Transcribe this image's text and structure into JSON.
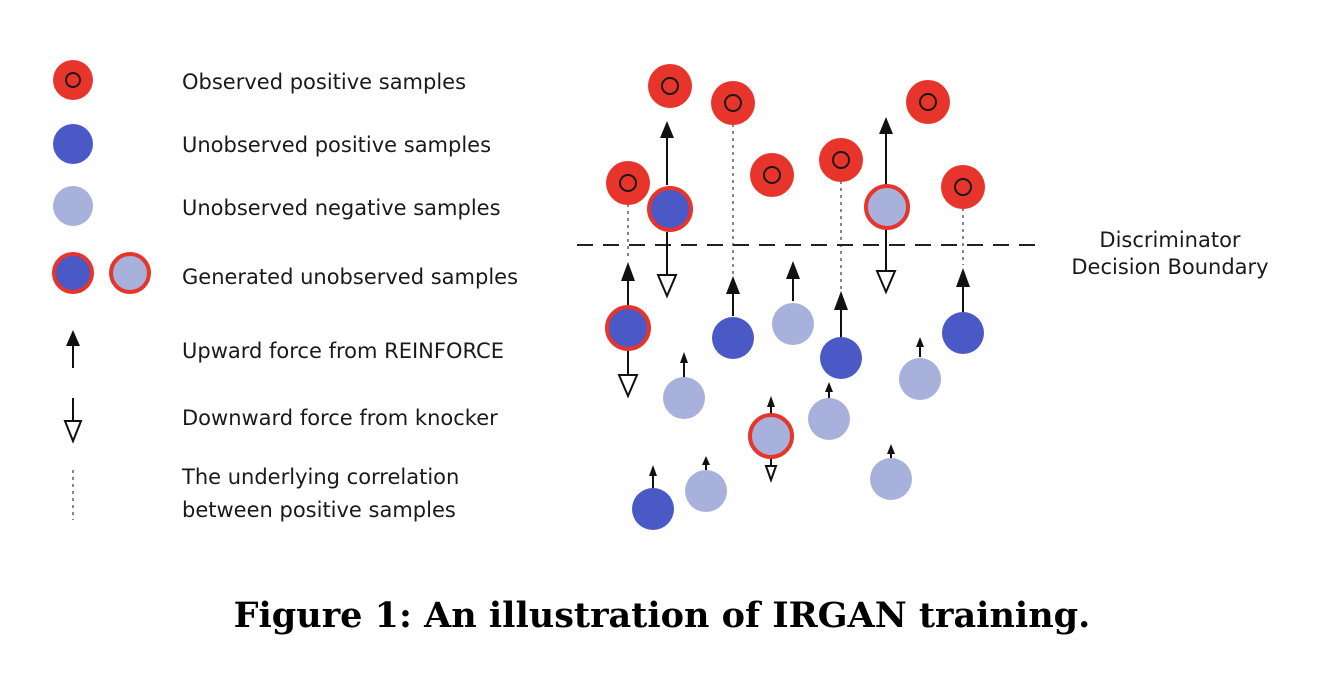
{
  "colors": {
    "observed_red": "#e8352b",
    "observed_ring": "#1a1a1a",
    "unobserved_positive": "#4a59c6",
    "unobserved_negative": "#a8b0dc",
    "generated_ring": "#e8352b",
    "arrow": "#111111",
    "dotted_line": "#888888",
    "boundary": "#222222"
  },
  "legend": {
    "observed": "Observed positive samples",
    "unobserved_positive": "Unobserved positive samples",
    "unobserved_negative": "Unobserved negative samples",
    "generated": "Generated unobserved samples",
    "upward": "Upward force from REINFORCE",
    "downward": "Downward force from knocker",
    "correlation_line1": "The underlying correlation",
    "correlation_line2": "between positive samples"
  },
  "boundary_label": {
    "line1": "Discriminator",
    "line2": "Decision Boundary"
  },
  "caption": "Figure 1: An illustration of IRGAN training."
}
